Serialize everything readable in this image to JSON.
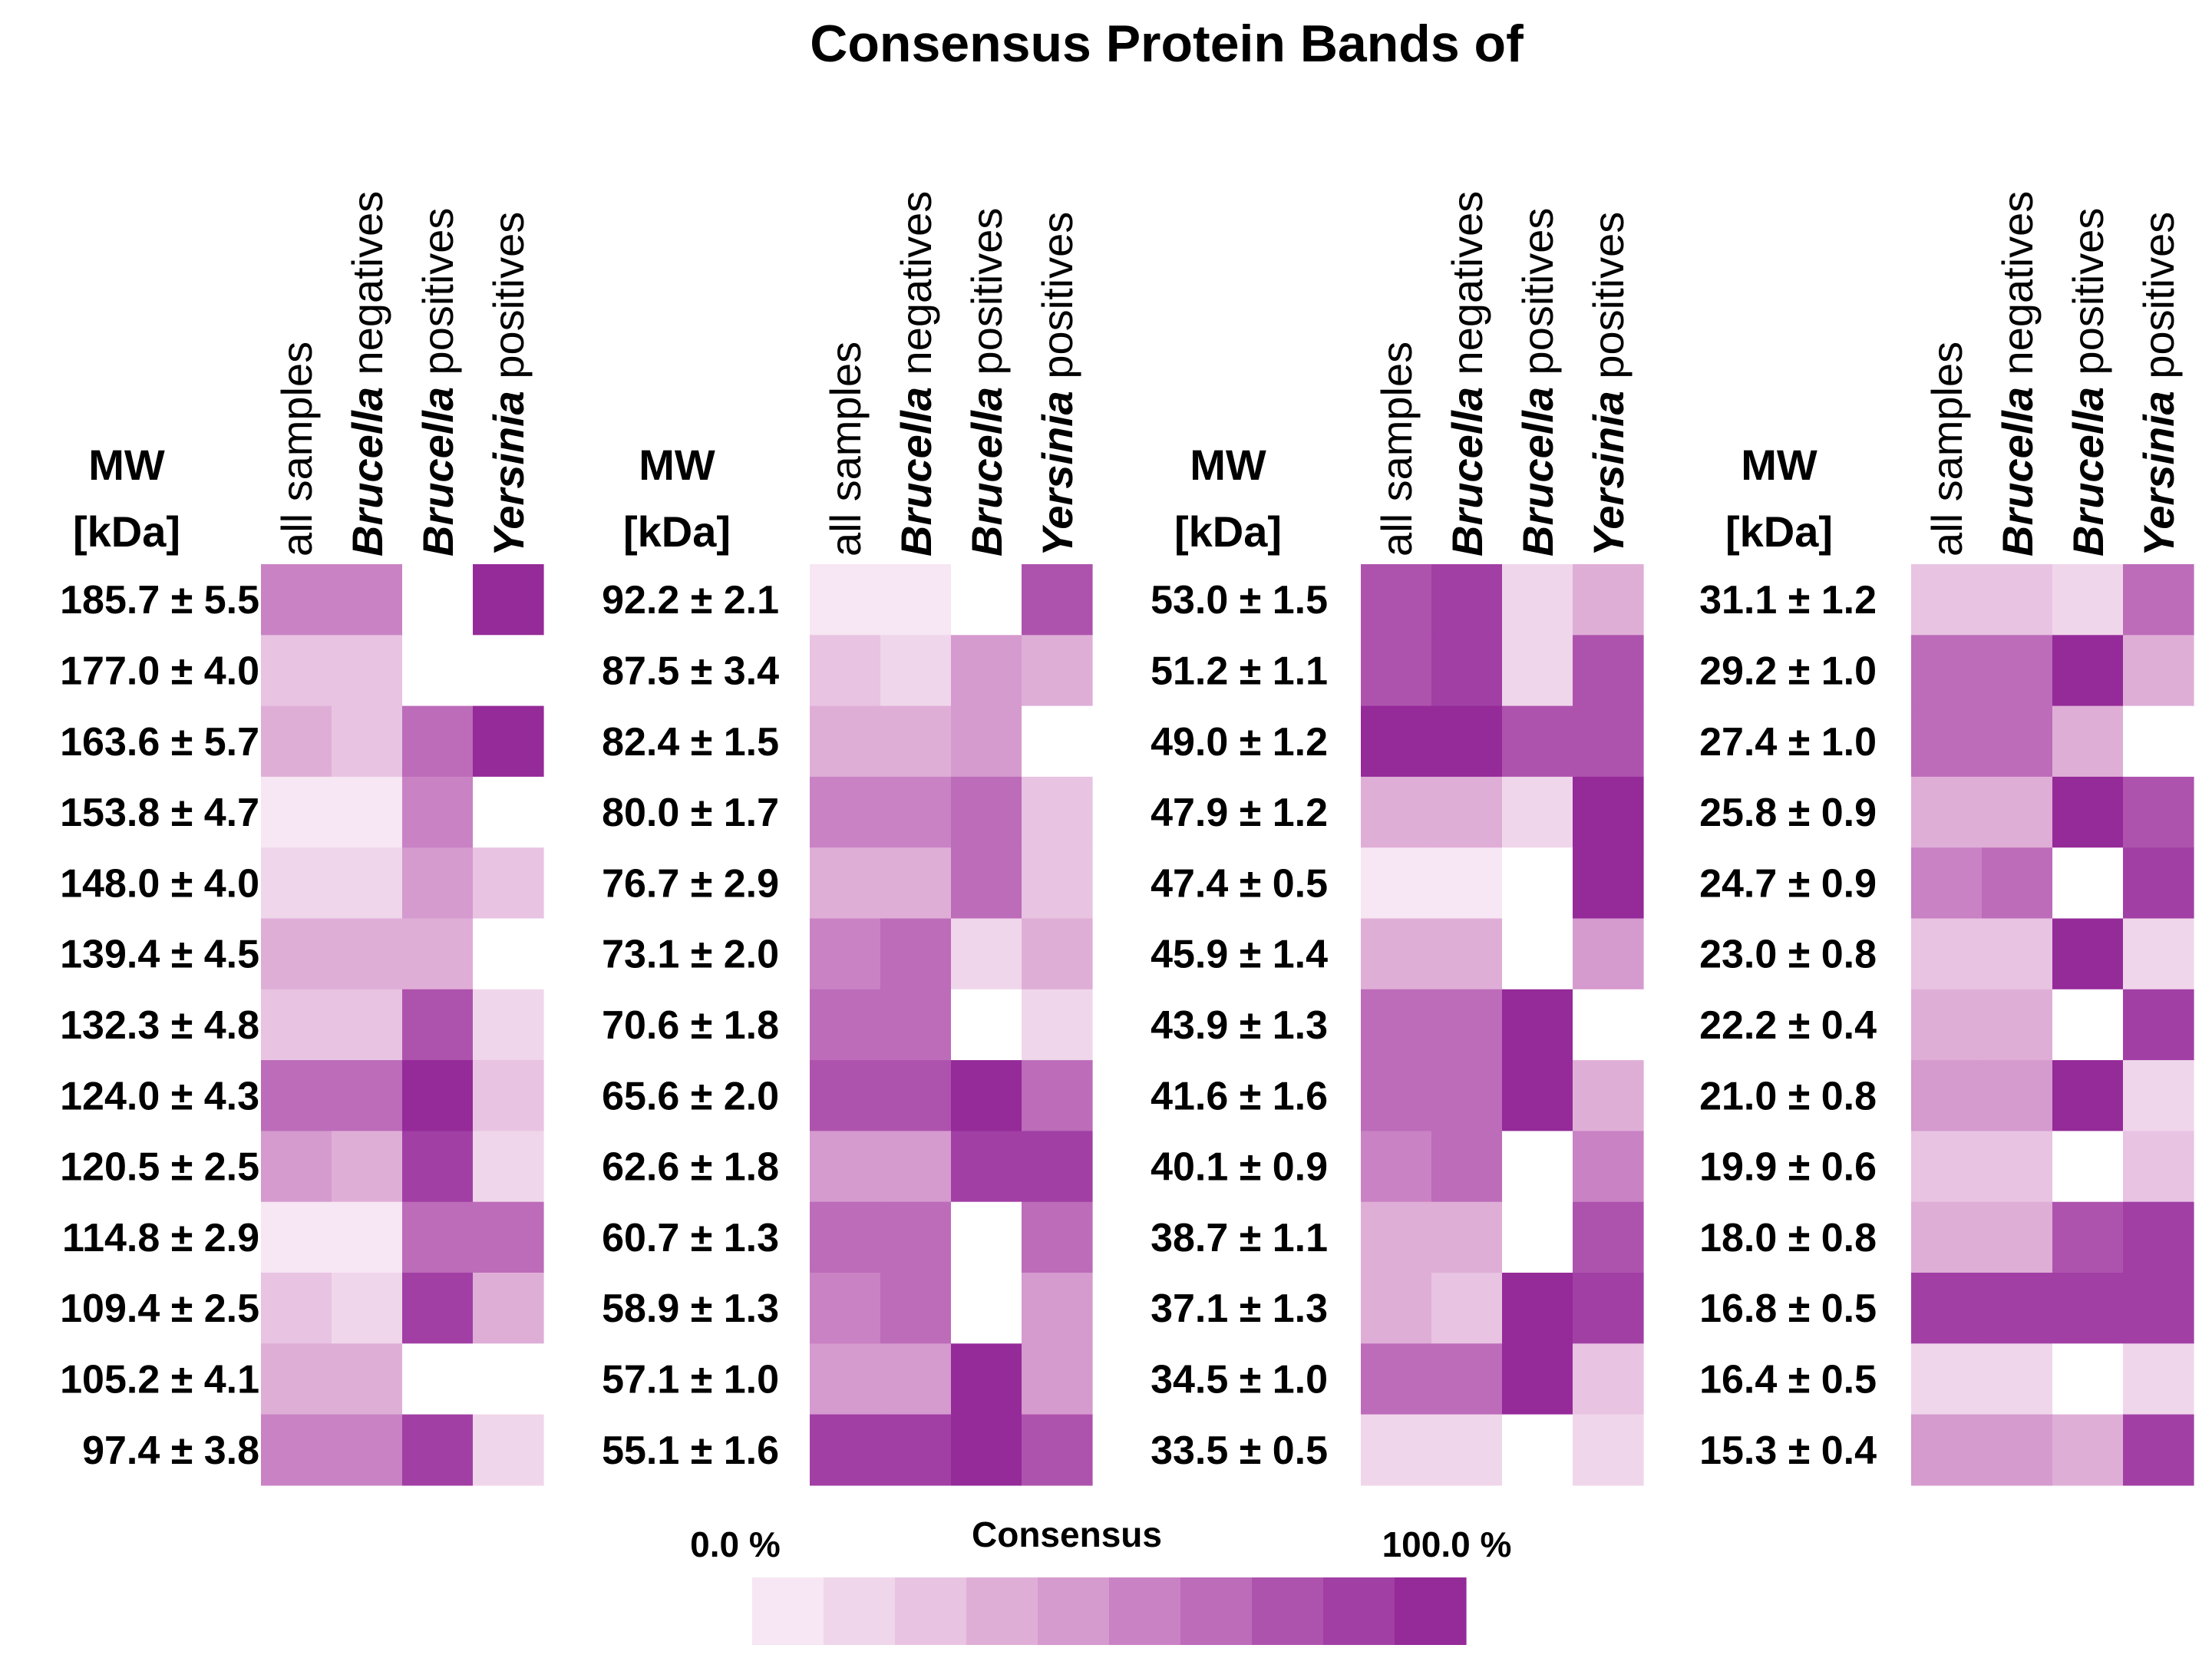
{
  "chart_data": {
    "type": "heatmap",
    "title": "Consensus Protein Bands of",
    "mw_label_line1": "MW",
    "mw_label_line2": "[kDa]",
    "columns": [
      {
        "prefix": "",
        "italic": "",
        "suffix": "all samples"
      },
      {
        "prefix": "",
        "italic": "Brucella",
        "suffix": " negatives"
      },
      {
        "prefix": "",
        "italic": "Brucella",
        "suffix": " positives"
      },
      {
        "prefix": "",
        "italic": "Yersinia",
        "suffix": " positives"
      }
    ],
    "value_range": [
      0,
      100
    ],
    "legend": {
      "title": "Consensus",
      "min_label": "0.0 %",
      "max_label": "100.0 %",
      "steps": 10,
      "colors": [
        "#f7e6f3",
        "#f0d6eb",
        "#e8c3e2",
        "#dfaed7",
        "#d59ace",
        "#c982c4",
        "#bc6cb9",
        "#ae53ad",
        "#a13fa5",
        "#952a99"
      ]
    },
    "panels": [
      {
        "rows": [
          {
            "mw": "185.7 ± 5.5",
            "values": [
              55,
              55,
              0,
              100
            ]
          },
          {
            "mw": "177.0 ± 4.0",
            "values": [
              25,
              25,
              0,
              0
            ]
          },
          {
            "mw": "163.6 ± 5.7",
            "values": [
              30,
              25,
              60,
              100
            ]
          },
          {
            "mw": "153.8 ± 4.7",
            "values": [
              5,
              3,
              55,
              0
            ]
          },
          {
            "mw": "148.0 ± 4.0",
            "values": [
              15,
              12,
              40,
              25
            ]
          },
          {
            "mw": "139.4 ± 4.5",
            "values": [
              35,
              35,
              35,
              0
            ]
          },
          {
            "mw": "132.3 ± 4.8",
            "values": [
              25,
              20,
              75,
              10
            ]
          },
          {
            "mw": "124.0 ± 4.3",
            "values": [
              65,
              65,
              95,
              25
            ]
          },
          {
            "mw": "120.5 ± 2.5",
            "values": [
              45,
              35,
              80,
              10
            ]
          },
          {
            "mw": "114.8 ± 2.9",
            "values": [
              5,
              2,
              60,
              60
            ]
          },
          {
            "mw": "109.4 ± 2.5",
            "values": [
              25,
              15,
              80,
              35
            ]
          },
          {
            "mw": "105.2 ± 4.1",
            "values": [
              35,
              30,
              0,
              0
            ]
          },
          {
            "mw": "97.4 ± 3.8",
            "values": [
              55,
              50,
              80,
              10
            ]
          }
        ]
      },
      {
        "rows": [
          {
            "mw": "92.2 ± 2.1",
            "values": [
              8,
              8,
              0,
              70
            ]
          },
          {
            "mw": "87.5 ± 3.4",
            "values": [
              20,
              18,
              40,
              35
            ]
          },
          {
            "mw": "82.4 ± 1.5",
            "values": [
              35,
              35,
              40,
              0
            ]
          },
          {
            "mw": "80.0 ± 1.7",
            "values": [
              55,
              55,
              60,
              20
            ]
          },
          {
            "mw": "76.7 ± 2.9",
            "values": [
              35,
              30,
              60,
              20
            ]
          },
          {
            "mw": "73.1 ± 2.0",
            "values": [
              55,
              60,
              15,
              35
            ]
          },
          {
            "mw": "70.6 ± 1.8",
            "values": [
              60,
              65,
              0,
              10
            ]
          },
          {
            "mw": "65.6 ± 2.0",
            "values": [
              75,
              75,
              100,
              65
            ]
          },
          {
            "mw": "62.6 ± 1.8",
            "values": [
              45,
              45,
              80,
              85
            ]
          },
          {
            "mw": "60.7 ± 1.3",
            "values": [
              60,
              65,
              0,
              60
            ]
          },
          {
            "mw": "58.9 ± 1.3",
            "values": [
              55,
              60,
              0,
              45
            ]
          },
          {
            "mw": "57.1 ± 1.0",
            "values": [
              45,
              40,
              100,
              45
            ]
          },
          {
            "mw": "55.1 ± 1.6",
            "values": [
              85,
              85,
              100,
              70
            ]
          }
        ]
      },
      {
        "rows": [
          {
            "mw": "53.0 ± 1.5",
            "values": [
              75,
              80,
              15,
              35
            ]
          },
          {
            "mw": "51.2 ± 1.1",
            "values": [
              75,
              80,
              15,
              75
            ]
          },
          {
            "mw": "49.0 ± 1.2",
            "values": [
              90,
              90,
              75,
              70
            ]
          },
          {
            "mw": "47.9 ± 1.2",
            "values": [
              35,
              30,
              15,
              100
            ]
          },
          {
            "mw": "47.4 ± 0.5",
            "values": [
              5,
              5,
              0,
              100
            ]
          },
          {
            "mw": "45.9 ± 1.4",
            "values": [
              35,
              35,
              0,
              45
            ]
          },
          {
            "mw": "43.9 ± 1.3",
            "values": [
              65,
              60,
              100,
              0
            ]
          },
          {
            "mw": "41.6 ± 1.6",
            "values": [
              60,
              60,
              100,
              30
            ]
          },
          {
            "mw": "40.1 ± 0.9",
            "values": [
              55,
              60,
              0,
              55
            ]
          },
          {
            "mw": "38.7 ± 1.1",
            "values": [
              30,
              30,
              0,
              70
            ]
          },
          {
            "mw": "37.1 ± 1.3",
            "values": [
              35,
              25,
              100,
              85
            ]
          },
          {
            "mw": "34.5 ± 1.0",
            "values": [
              65,
              60,
              100,
              20
            ]
          },
          {
            "mw": "33.5 ± 0.5",
            "values": [
              15,
              15,
              0,
              10
            ]
          }
        ]
      },
      {
        "rows": [
          {
            "mw": "31.1 ± 1.2",
            "values": [
              20,
              20,
              15,
              65
            ]
          },
          {
            "mw": "29.2 ± 1.0",
            "values": [
              65,
              65,
              100,
              30
            ]
          },
          {
            "mw": "27.4 ± 1.0",
            "values": [
              60,
              60,
              35,
              0
            ]
          },
          {
            "mw": "25.8 ± 0.9",
            "values": [
              35,
              30,
              100,
              70
            ]
          },
          {
            "mw": "24.7 ± 0.9",
            "values": [
              55,
              65,
              0,
              80
            ]
          },
          {
            "mw": "23.0 ± 0.8",
            "values": [
              25,
              20,
              100,
              10
            ]
          },
          {
            "mw": "22.2 ± 0.4",
            "values": [
              30,
              35,
              0,
              80
            ]
          },
          {
            "mw": "21.0 ± 0.8",
            "values": [
              45,
              40,
              100,
              10
            ]
          },
          {
            "mw": "19.9 ± 0.6",
            "values": [
              20,
              20,
              0,
              25
            ]
          },
          {
            "mw": "18.0 ± 0.8",
            "values": [
              35,
              30,
              75,
              80
            ]
          },
          {
            "mw": "16.8 ± 0.5",
            "values": [
              85,
              85,
              80,
              85
            ]
          },
          {
            "mw": "16.4 ± 0.5",
            "values": [
              10,
              10,
              0,
              10
            ]
          },
          {
            "mw": "15.3 ± 0.4",
            "values": [
              40,
              40,
              35,
              80
            ]
          }
        ]
      }
    ]
  }
}
